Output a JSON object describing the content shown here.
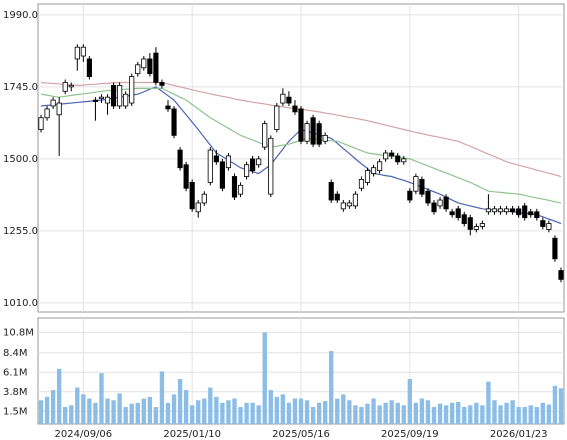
{
  "chart_data": {
    "type": "candlestick",
    "categories": [
      null,
      null,
      null,
      null,
      null,
      null,
      null,
      "2024/09/06",
      null,
      null,
      null,
      null,
      null,
      null,
      null,
      null,
      null,
      null,
      null,
      null,
      null,
      null,
      null,
      null,
      null,
      "2025/01/10",
      null,
      null,
      null,
      null,
      null,
      null,
      null,
      null,
      null,
      null,
      null,
      null,
      null,
      null,
      null,
      null,
      null,
      "2025/05/16",
      null,
      null,
      null,
      null,
      null,
      null,
      null,
      null,
      null,
      null,
      null,
      null,
      null,
      null,
      null,
      null,
      null,
      "2025/09/19",
      null,
      null,
      null,
      null,
      null,
      null,
      null,
      null,
      null,
      null,
      null,
      null,
      null,
      null,
      null,
      null,
      null,
      "2026/01/23",
      null,
      null,
      null,
      null,
      null,
      null,
      null
    ],
    "open": [
      1600,
      1640,
      1680,
      1650,
      1730,
      1745,
      1840,
      1850,
      1840,
      1700,
      1705,
      1690,
      1750,
      1680,
      1680,
      1690,
      1790,
      1810,
      1840,
      1860,
      1760,
      1680,
      1670,
      1530,
      1480,
      1420,
      1320,
      1350,
      1420,
      1510,
      1490,
      1470,
      1440,
      1380,
      1440,
      1500,
      1480,
      1540,
      1380,
      1600,
      1690,
      1710,
      1680,
      1670,
      1560,
      1640,
      1620,
      1560,
      1420,
      1380,
      1330,
      1340,
      1340,
      1400,
      1420,
      1450,
      1460,
      1500,
      1520,
      1510,
      1490,
      1390,
      1390,
      1430,
      1390,
      1350,
      1340,
      1370,
      1320,
      1330,
      1310,
      1300,
      1260,
      1270,
      1320,
      1320,
      1320,
      1320,
      1330,
      1330,
      1340,
      1320,
      1320,
      1290,
      1260,
      1230,
      1120
    ],
    "high": [
      1650,
      1680,
      1710,
      1710,
      1770,
      1760,
      1890,
      1890,
      1850,
      1710,
      1720,
      1720,
      1760,
      1760,
      1730,
      1790,
      1830,
      1850,
      1860,
      1880,
      1770,
      1700,
      1680,
      1540,
      1490,
      1430,
      1360,
      1390,
      1540,
      1530,
      1500,
      1520,
      1450,
      1420,
      1490,
      1510,
      1510,
      1630,
      1580,
      1690,
      1740,
      1730,
      1700,
      1680,
      1630,
      1650,
      1630,
      1590,
      1430,
      1390,
      1360,
      1360,
      1390,
      1440,
      1470,
      1480,
      1500,
      1530,
      1530,
      1520,
      1510,
      1400,
      1450,
      1440,
      1400,
      1360,
      1370,
      1380,
      1330,
      1340,
      1320,
      1310,
      1280,
      1290,
      1380,
      1340,
      1340,
      1340,
      1340,
      1340,
      1350,
      1330,
      1330,
      1300,
      1290,
      1240,
      1130
    ],
    "low": [
      1590,
      1630,
      1670,
      1510,
      1720,
      1730,
      1800,
      1830,
      1770,
      1630,
      1690,
      1650,
      1670,
      1670,
      1670,
      1680,
      1780,
      1800,
      1780,
      1750,
      1740,
      1660,
      1570,
      1460,
      1390,
      1320,
      1300,
      1340,
      1410,
      1480,
      1390,
      1460,
      1360,
      1370,
      1430,
      1450,
      1470,
      1530,
      1370,
      1590,
      1680,
      1680,
      1650,
      1550,
      1550,
      1540,
      1540,
      1550,
      1350,
      1350,
      1320,
      1330,
      1330,
      1390,
      1410,
      1440,
      1450,
      1490,
      1500,
      1480,
      1480,
      1350,
      1380,
      1370,
      1340,
      1310,
      1330,
      1320,
      1300,
      1290,
      1270,
      1240,
      1250,
      1260,
      1310,
      1310,
      1310,
      1310,
      1310,
      1300,
      1290,
      1300,
      1290,
      1260,
      1250,
      1150,
      1080
    ],
    "close": [
      1640,
      1670,
      1700,
      1690,
      1760,
      1750,
      1880,
      1880,
      1780,
      1695,
      1710,
      1710,
      1680,
      1750,
      1720,
      1780,
      1820,
      1840,
      1790,
      1760,
      1750,
      1670,
      1580,
      1470,
      1400,
      1330,
      1350,
      1380,
      1530,
      1490,
      1400,
      1510,
      1370,
      1410,
      1480,
      1460,
      1500,
      1620,
      1570,
      1680,
      1720,
      1690,
      1660,
      1560,
      1620,
      1550,
      1550,
      1580,
      1360,
      1360,
      1350,
      1350,
      1380,
      1430,
      1460,
      1470,
      1490,
      1520,
      1510,
      1490,
      1500,
      1360,
      1440,
      1380,
      1350,
      1320,
      1360,
      1330,
      1310,
      1300,
      1280,
      1260,
      1270,
      1280,
      1330,
      1330,
      1330,
      1330,
      1320,
      1310,
      1300,
      1310,
      1300,
      1270,
      1280,
      1160,
      1090
    ],
    "up_color": "#ffffff",
    "down_color": "#000000",
    "series": [
      {
        "color": "#4a64b4",
        "values": [
          1680,
          1682,
          1684,
          1686,
          1688,
          1690,
          1692,
          1694,
          1696,
          1698,
          1700,
          1703,
          1707,
          1710,
          1713,
          1717,
          1720,
          1728,
          1737,
          1745,
          1730,
          1715,
          1700,
          1675,
          1650,
          1625,
          1600,
          1573,
          1547,
          1520,
          1508,
          1495,
          1483,
          1470,
          1463,
          1457,
          1450,
          1465,
          1480,
          1507,
          1533,
          1560,
          1580,
          1600,
          1594,
          1588,
          1582,
          1576,
          1570,
          1553,
          1535,
          1518,
          1500,
          1483,
          1467,
          1450,
          1447,
          1443,
          1440,
          1433,
          1427,
          1420,
          1412,
          1404,
          1396,
          1388,
          1380,
          1370,
          1360,
          1350,
          1345,
          1340,
          1335,
          1330,
          1328,
          1326,
          1324,
          1322,
          1320,
          1318,
          1315,
          1313,
          1310,
          1303,
          1295,
          1288,
          1280
        ]
      },
      {
        "color": "#8fc48f",
        "values": [
          1720,
          1717,
          1713,
          1710,
          1713,
          1716,
          1719,
          1721,
          1724,
          1727,
          1730,
          1732,
          1733,
          1735,
          1737,
          1738,
          1740,
          1740,
          1740,
          1740,
          1740,
          1730,
          1720,
          1710,
          1700,
          1685,
          1670,
          1655,
          1640,
          1628,
          1616,
          1604,
          1592,
          1580,
          1572,
          1564,
          1556,
          1548,
          1540,
          1543,
          1547,
          1550,
          1557,
          1563,
          1570,
          1568,
          1566,
          1564,
          1562,
          1560,
          1552,
          1544,
          1536,
          1528,
          1520,
          1517,
          1514,
          1511,
          1509,
          1506,
          1503,
          1500,
          1492,
          1484,
          1476,
          1468,
          1460,
          1452,
          1444,
          1436,
          1428,
          1420,
          1410,
          1400,
          1390,
          1388,
          1386,
          1384,
          1382,
          1380,
          1376,
          1371,
          1367,
          1363,
          1359,
          1354,
          1350
        ]
      },
      {
        "color": "#d4a4a4",
        "values": [
          1760,
          1758,
          1757,
          1755,
          1753,
          1752,
          1750,
          1751,
          1753,
          1754,
          1756,
          1757,
          1759,
          1760,
          1760,
          1760,
          1760,
          1760,
          1760,
          1760,
          1760,
          1755,
          1750,
          1745,
          1740,
          1735,
          1730,
          1726,
          1721,
          1717,
          1713,
          1709,
          1704,
          1700,
          1697,
          1693,
          1690,
          1687,
          1683,
          1680,
          1677,
          1674,
          1671,
          1669,
          1666,
          1663,
          1660,
          1656,
          1653,
          1649,
          1645,
          1641,
          1638,
          1634,
          1630,
          1625,
          1620,
          1615,
          1610,
          1605,
          1600,
          1595,
          1590,
          1586,
          1581,
          1577,
          1573,
          1569,
          1564,
          1560,
          1551,
          1543,
          1534,
          1525,
          1516,
          1508,
          1499,
          1490,
          1484,
          1479,
          1473,
          1468,
          1462,
          1457,
          1451,
          1446,
          1440
        ]
      }
    ],
    "ylim": [
      979,
      2027
    ],
    "yticks": [
      {
        "value": 1010,
        "label": "1010.0"
      },
      {
        "value": 1255,
        "label": "1255.0"
      },
      {
        "value": 1500,
        "label": "1500.0"
      },
      {
        "value": 1745,
        "label": "1745.0"
      },
      {
        "value": 1990,
        "label": "1990.0"
      }
    ],
    "grid": true,
    "volume": {
      "type": "bar",
      "color": "#8bbde6",
      "values": [
        2800000,
        3200000,
        4000000,
        6500000,
        2000000,
        2200000,
        4300000,
        3500000,
        3000000,
        2500000,
        6000000,
        3000000,
        2800000,
        3600000,
        2000000,
        2400000,
        2500000,
        3000000,
        3200000,
        2000000,
        6200000,
        2500000,
        3500000,
        5300000,
        4000000,
        2200000,
        2800000,
        3000000,
        4300000,
        3200000,
        2500000,
        2800000,
        3000000,
        2000000,
        2500000,
        2500000,
        2200000,
        10800000,
        4000000,
        3200000,
        3500000,
        2500000,
        3000000,
        3000000,
        2800000,
        2000000,
        2500000,
        2700000,
        8600000,
        3000000,
        3500000,
        2800000,
        2200000,
        2000000,
        2400000,
        3000000,
        2200000,
        2500000,
        2800000,
        2500000,
        2200000,
        5300000,
        2500000,
        3000000,
        2800000,
        2000000,
        2400000,
        2200000,
        2500000,
        2600000,
        2000000,
        2200000,
        2500000,
        2200000,
        5000000,
        2800000,
        2200000,
        2500000,
        2800000,
        2000000,
        2000000,
        2200000,
        2000000,
        2500000,
        2300000,
        4500000,
        4200000
      ],
      "ylim": [
        0,
        12500000
      ],
      "yticks": [
        {
          "value": 1500000,
          "label": "1.5M"
        },
        {
          "value": 3800000,
          "label": "3.8M"
        },
        {
          "value": 6100000,
          "label": "6.1M"
        },
        {
          "value": 8400000,
          "label": "8.4M"
        },
        {
          "value": 10800000,
          "label": "10.8M"
        }
      ]
    }
  }
}
